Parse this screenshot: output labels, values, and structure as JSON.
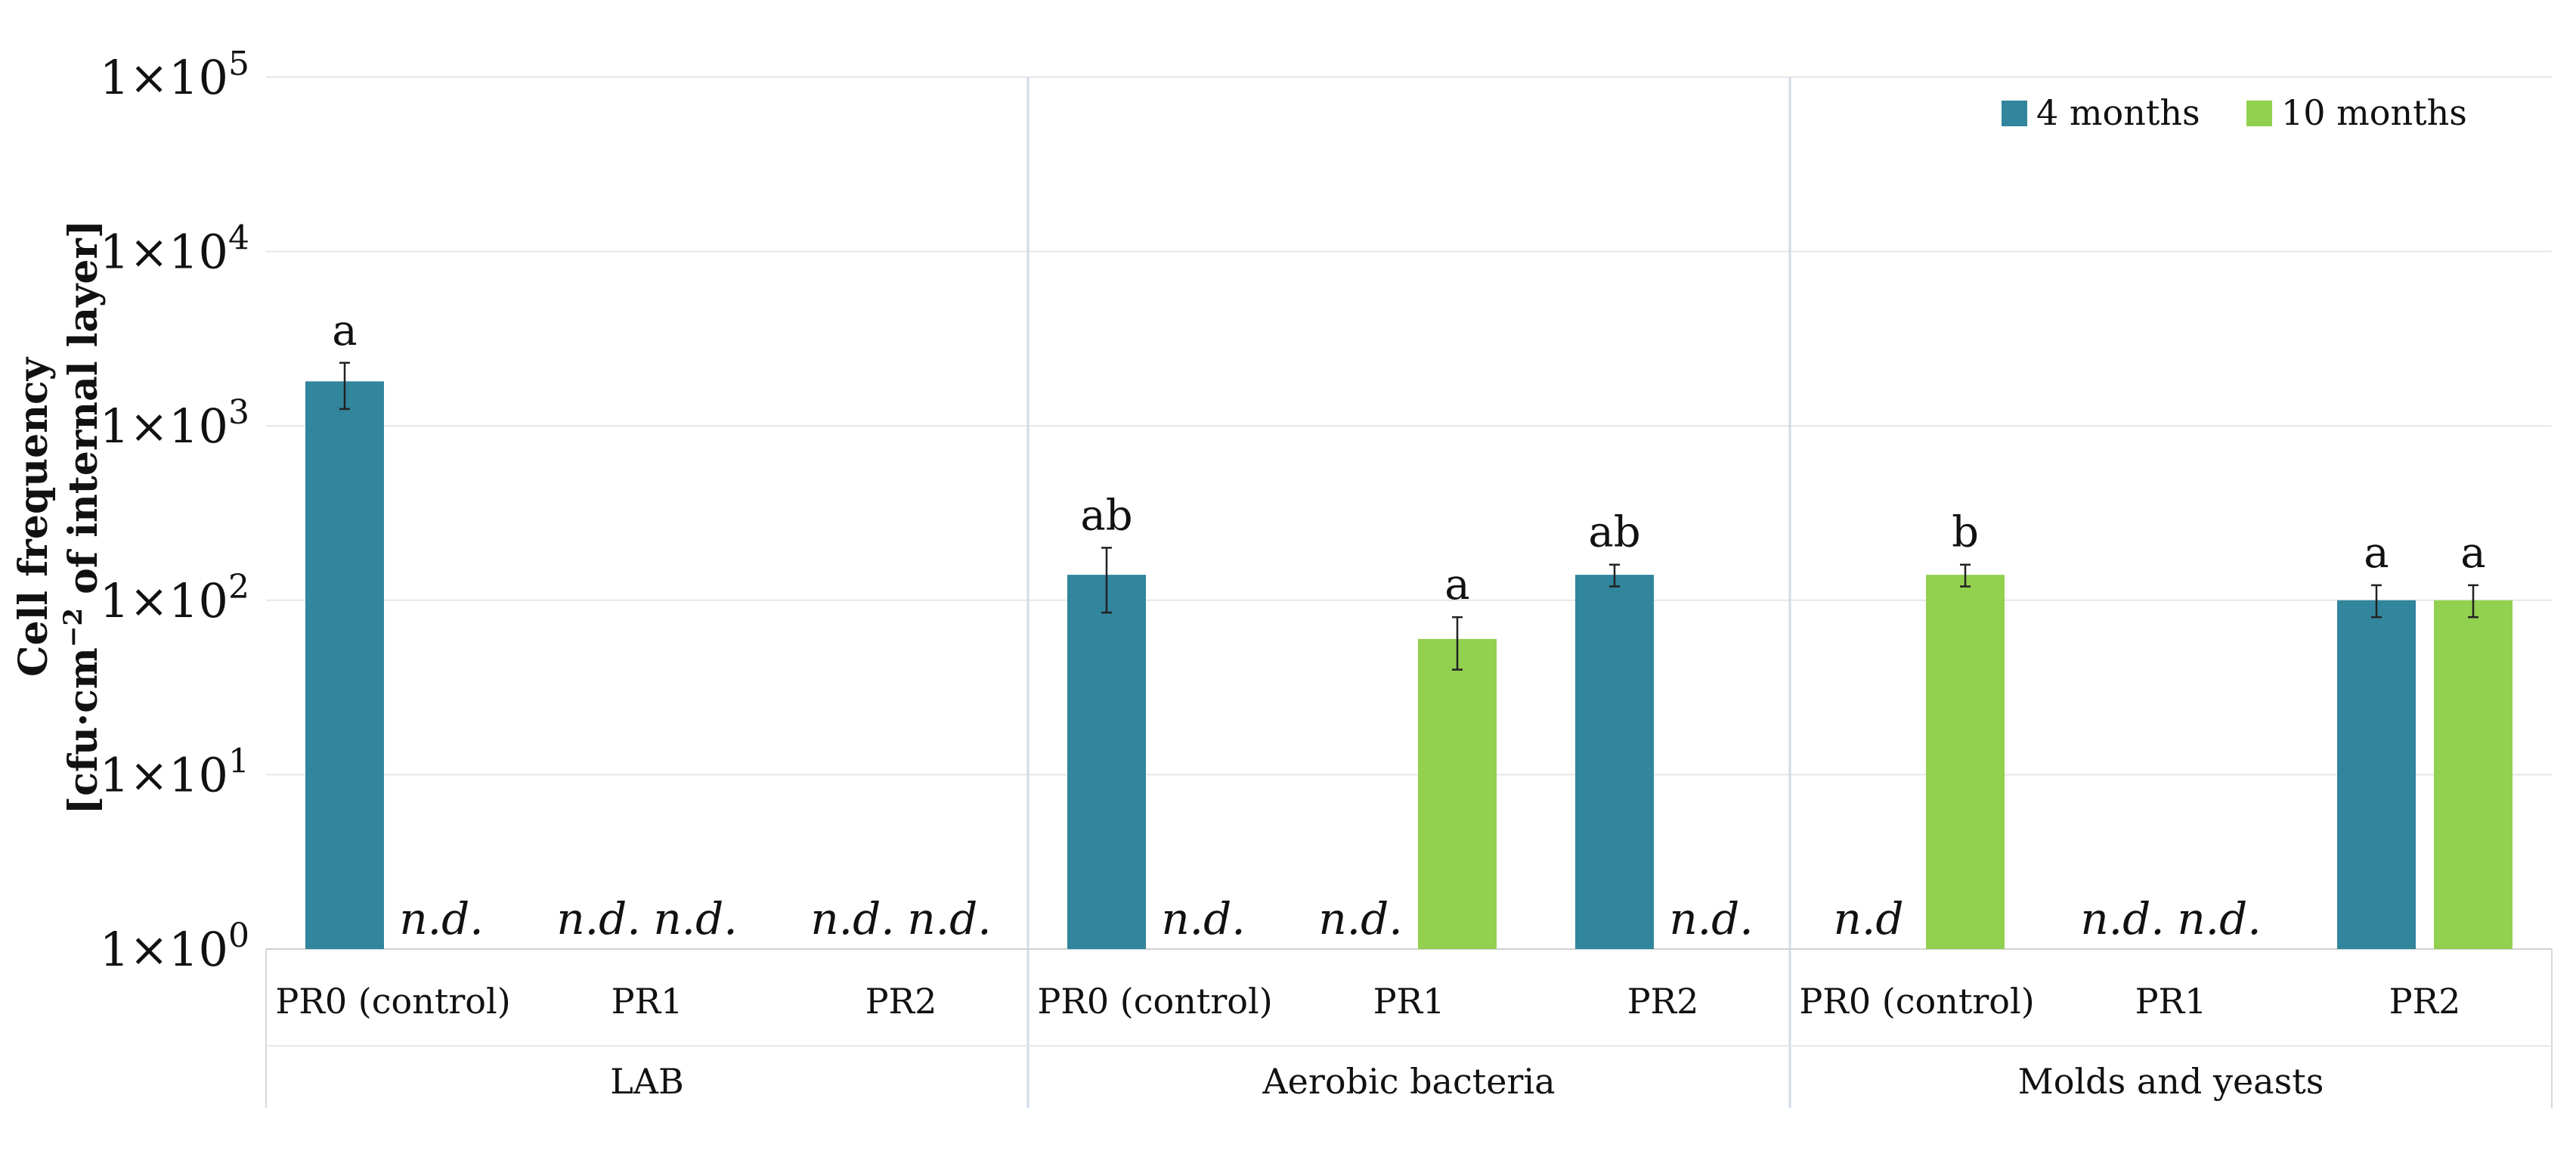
{
  "chart_data": {
    "type": "bar",
    "y_scale": "log",
    "ylim": [
      1,
      100000
    ],
    "yticks": [
      {
        "value": 1,
        "base": "1×10",
        "exp": "0"
      },
      {
        "value": 10,
        "base": "1×10",
        "exp": "1"
      },
      {
        "value": 100,
        "base": "1×10",
        "exp": "2"
      },
      {
        "value": 1000,
        "base": "1×10",
        "exp": "3"
      },
      {
        "value": 10000,
        "base": "1×10",
        "exp": "4"
      },
      {
        "value": 100000,
        "base": "1×10",
        "exp": "5"
      }
    ],
    "ylabel": {
      "line1": "Cell frequency",
      "line2_pre": "[cfu·cm",
      "line2_sup": "−2",
      "line2_post": " of internal layer]"
    },
    "grid": true,
    "legend_position": "top-right",
    "series": [
      {
        "name": "4 months",
        "color": "#31859c"
      },
      {
        "name": "10 months",
        "color": "#92d050"
      }
    ],
    "groups": [
      {
        "name": "LAB",
        "categories": [
          {
            "name": "PR0 (control)",
            "bars": [
              {
                "value": 1800,
                "err_low": 1250,
                "err_high": 2300,
                "label": "a"
              },
              {
                "value": null,
                "label": "n.d."
              }
            ]
          },
          {
            "name": "PR1",
            "bars": [
              {
                "value": null,
                "label": "n.d."
              },
              {
                "value": null,
                "label": "n.d."
              }
            ]
          },
          {
            "name": "PR2",
            "bars": [
              {
                "value": null,
                "label": "n.d."
              },
              {
                "value": null,
                "label": "n.d."
              }
            ]
          }
        ]
      },
      {
        "name": "Aerobic bacteria",
        "categories": [
          {
            "name": "PR0 (control)",
            "bars": [
              {
                "value": 140,
                "err_low": 85,
                "err_high": 200,
                "label": "ab"
              },
              {
                "value": null,
                "label": "n.d."
              }
            ]
          },
          {
            "name": "PR1",
            "bars": [
              {
                "value": null,
                "label": "n.d."
              },
              {
                "value": 60,
                "err_low": 40,
                "err_high": 80,
                "label": "a"
              }
            ]
          },
          {
            "name": "PR2",
            "bars": [
              {
                "value": 140,
                "err_low": 120,
                "err_high": 160,
                "label": "ab"
              },
              {
                "value": null,
                "label": "n.d."
              }
            ]
          }
        ]
      },
      {
        "name": "Molds and yeasts",
        "categories": [
          {
            "name": "PR0 (control)",
            "bars": [
              {
                "value": null,
                "label": "n.d"
              },
              {
                "value": 140,
                "err_low": 120,
                "err_high": 160,
                "label": "b"
              }
            ]
          },
          {
            "name": "PR1",
            "bars": [
              {
                "value": null,
                "label": "n.d."
              },
              {
                "value": null,
                "label": "n.d."
              }
            ]
          },
          {
            "name": "PR2",
            "bars": [
              {
                "value": 100,
                "err_low": 80,
                "err_high": 122,
                "label": "a"
              },
              {
                "value": 100,
                "err_low": 80,
                "err_high": 122,
                "label": "a"
              }
            ]
          }
        ]
      }
    ]
  }
}
